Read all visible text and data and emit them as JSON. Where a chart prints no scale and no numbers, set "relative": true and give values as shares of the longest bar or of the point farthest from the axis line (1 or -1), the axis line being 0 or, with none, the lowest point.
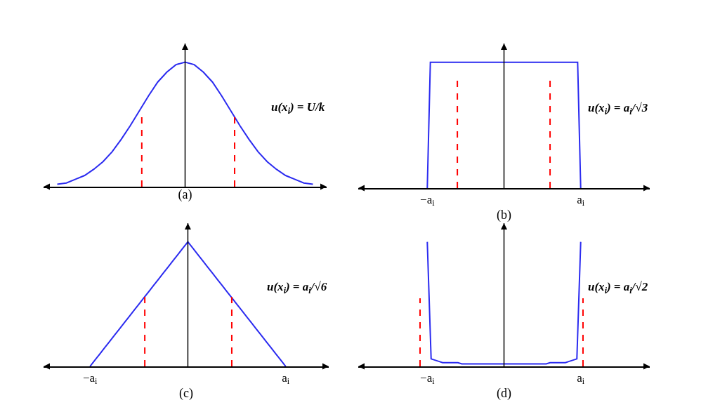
{
  "chart_data": [
    {
      "type": "line",
      "relative": true,
      "tick_labels": false,
      "xlabel": "(a)",
      "categories": [
        null,
        null,
        null,
        null,
        null,
        null,
        null,
        null,
        null,
        null,
        null,
        null,
        null,
        null,
        null,
        null,
        null,
        null,
        null,
        null,
        null,
        null,
        null,
        null,
        null,
        null,
        null,
        null,
        null
      ],
      "series": [
        {
          "color": "#2b2bf0",
          "values": [
            0.02,
            0.03,
            0.06,
            0.09,
            0.14,
            0.2,
            0.28,
            0.38,
            0.49,
            0.61,
            0.73,
            0.84,
            0.92,
            0.98,
            1,
            0.98,
            0.92,
            0.84,
            0.73,
            0.61,
            0.49,
            0.38,
            0.28,
            0.2,
            0.14,
            0.09,
            0.06,
            0.03,
            0.02
          ]
        }
      ],
      "annotations": [
        "u(x$_{i}$) = U/k"
      ]
    },
    {
      "type": "line",
      "relative": true,
      "tick_labels": "x",
      "xlabel": "(b)",
      "categories": [
        "−a$_{i}$",
        null,
        null,
        null,
        null,
        null,
        null,
        null,
        null,
        null,
        null,
        null,
        null,
        null,
        null,
        null,
        null,
        null,
        null,
        null,
        null,
        null,
        null,
        null,
        null,
        null,
        null,
        null,
        null,
        null,
        null,
        null,
        null,
        null,
        null,
        null,
        null,
        null,
        null,
        null,
        null,
        null,
        null,
        null,
        null,
        null,
        null,
        null,
        null,
        null,
        "a$_{i}$"
      ],
      "series": [
        {
          "color": "#2b2bf0",
          "values": [
            0,
            1,
            1,
            1,
            1,
            1,
            1,
            1,
            1,
            1,
            1,
            1,
            1,
            1,
            1,
            1,
            1,
            1,
            1,
            1,
            1,
            1,
            1,
            1,
            1,
            1,
            1,
            1,
            1,
            1,
            1,
            1,
            1,
            1,
            1,
            1,
            1,
            1,
            1,
            1,
            1,
            1,
            1,
            1,
            1,
            1,
            1,
            1,
            1,
            1,
            0
          ]
        }
      ],
      "annotations": [
        "u(x$_{i}$) = a$_{i}$/√3"
      ]
    },
    {
      "type": "line",
      "relative": true,
      "tick_labels": "x",
      "xlabel": "(c)",
      "categories": [
        "−a$_{i}$",
        null,
        null,
        null,
        null,
        null,
        null,
        null,
        null,
        null,
        null,
        null,
        null,
        null,
        null,
        null,
        null,
        null,
        null,
        null,
        null,
        null,
        null,
        null,
        null,
        null,
        null,
        null,
        null,
        null,
        null,
        null,
        null,
        null,
        null,
        null,
        null,
        null,
        null,
        null,
        "a$_{i}$"
      ],
      "series": [
        {
          "color": "#2b2bf0",
          "values": [
            0,
            0.05,
            0.1,
            0.15,
            0.2,
            0.25,
            0.3,
            0.35,
            0.4,
            0.45,
            0.5,
            0.55,
            0.6,
            0.65,
            0.7,
            0.75,
            0.8,
            0.85,
            0.9,
            0.95,
            1,
            0.95,
            0.9,
            0.85,
            0.8,
            0.75,
            0.7,
            0.65,
            0.6,
            0.55,
            0.5,
            0.45,
            0.4,
            0.35,
            0.3,
            0.25,
            0.2,
            0.15,
            0.1,
            0.05,
            0
          ]
        }
      ],
      "annotations": [
        "u(x$_{i}$) = a$_{i}$/√6"
      ]
    },
    {
      "type": "line",
      "relative": true,
      "tick_labels": "x",
      "xlabel": "(d)",
      "categories": [
        "−a$_{i}$",
        null,
        null,
        null,
        null,
        null,
        null,
        null,
        null,
        null,
        null,
        null,
        null,
        null,
        null,
        null,
        null,
        null,
        null,
        null,
        null,
        null,
        null,
        null,
        null,
        null,
        null,
        null,
        null,
        null,
        null,
        null,
        null,
        null,
        null,
        null,
        null,
        null,
        null,
        null,
        "a$_{i}$"
      ],
      "series": [
        {
          "color": "#2b2bf0",
          "values": [
            1,
            0.06,
            0.05,
            0.04,
            0.03,
            0.03,
            0.03,
            0.03,
            0.03,
            0.02,
            0.02,
            0.02,
            0.02,
            0.02,
            0.02,
            0.02,
            0.02,
            0.02,
            0.02,
            0.02,
            0.02,
            0.02,
            0.02,
            0.02,
            0.02,
            0.02,
            0.02,
            0.02,
            0.02,
            0.02,
            0.02,
            0.02,
            0.03,
            0.03,
            0.03,
            0.03,
            0.03,
            0.04,
            0.05,
            0.06,
            1
          ]
        }
      ],
      "annotations": [
        "u(x$_{i}$) = a$_{i}$/√2"
      ]
    }
  ]
}
